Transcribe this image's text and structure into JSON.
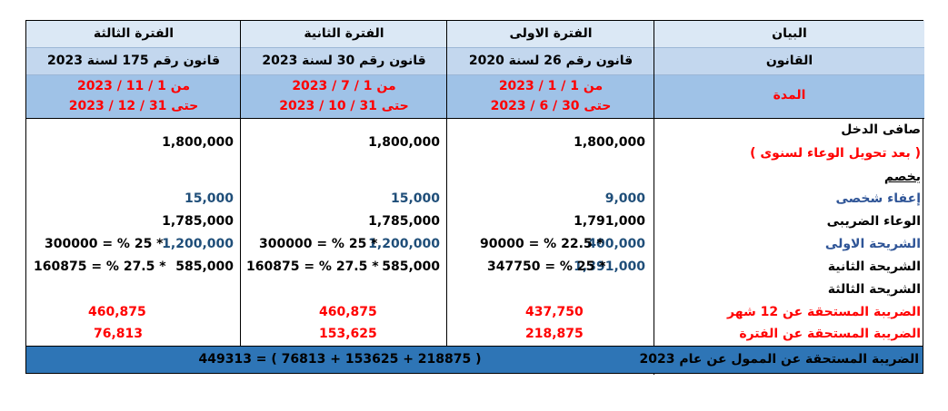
{
  "headers": {
    "statement": "البيان",
    "period1": "الفترة الاولى",
    "period2": "الفترة الثانية",
    "period3": "الفترة الثالثة"
  },
  "law": {
    "label": "القانون",
    "p1": "قانون رقم 26 لسنة 2020",
    "p2": "قانون رقم 30 لسنة 2023",
    "p3": "قانون رقم 175 لسنة 2023"
  },
  "duration": {
    "label": "المدة",
    "p1_from": "من 1 / 1 / 2023",
    "p1_to": "حتى 30 / 6 / 2023",
    "p2_from": "من 1 / 7 / 2023",
    "p2_to": "حتى 31 / 10 / 2023",
    "p3_from": "من 1 / 11 / 2023",
    "p3_to": "حتى 31 / 12 / 2023"
  },
  "rows": {
    "net_income_label": "صافى الدخل",
    "net_income_note": "( بعد تحويل الوعاء لسنوى )",
    "net_income": [
      "1,800,000",
      "1,800,000",
      "1,800,000"
    ],
    "deduct_label": "يخصم",
    "exemption_label": "إعفاء شخصى",
    "exemption": [
      "9,000",
      "15,000",
      "15,000"
    ],
    "base_label": "الوعاء الضريبى",
    "base": [
      "1,791,000",
      "1,785,000",
      "1,785,000"
    ],
    "bracket1_label": "الشريحة الاولى",
    "bracket1": [
      "400,000",
      "1,200,000",
      "1,200,000"
    ],
    "bracket1_calc": [
      "90000 = % 22.5 *",
      "300000 = % 25 *",
      "300000 = % 25 *"
    ],
    "bracket2_label": "الشريحة الثانية",
    "bracket2": [
      "1,391,000",
      "585,000",
      "585,000"
    ],
    "bracket2_calc": [
      "347750 = % 25 *",
      "160875 = % 27.5 *",
      "160875 = % 27.5 *"
    ],
    "bracket3_label": "الشريحة الثالثة",
    "tax12_label": "الضريبة المستحقة عن 12 شهر",
    "tax12": [
      "437,750",
      "460,875",
      "460,875"
    ],
    "taxperiod_label": "الضريبة المستحقة عن الفترة",
    "taxperiod": [
      "218,875",
      "153,625",
      "76,813"
    ]
  },
  "footer": {
    "label": "الضريبة المستحقة عن الممول عن عام 2023",
    "value": "449313 = ( 76813 + 153625 + 218875 )"
  }
}
